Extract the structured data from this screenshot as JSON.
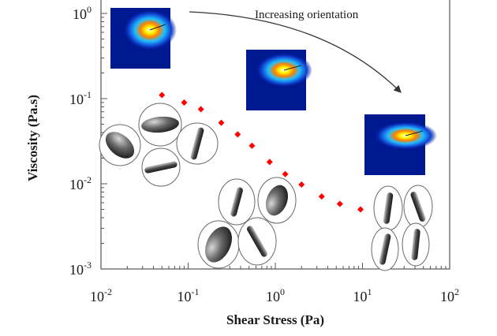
{
  "chart_data": {
    "type": "scatter",
    "title": "",
    "xlabel": "Shear Stress (Pa)",
    "ylabel": "Viscosity (Pa.s)",
    "xscale": "log",
    "yscale": "log",
    "xlim": [
      0.01,
      100
    ],
    "ylim": [
      0.001,
      1
    ],
    "x_ticks": [
      {
        "value": 0.01,
        "base": "10",
        "exp": "-2"
      },
      {
        "value": 0.1,
        "base": "10",
        "exp": "-1"
      },
      {
        "value": 1,
        "base": "10",
        "exp": "0"
      },
      {
        "value": 10,
        "base": "10",
        "exp": "1"
      },
      {
        "value": 100,
        "base": "10",
        "exp": "2"
      }
    ],
    "y_ticks": [
      {
        "value": 0.001,
        "base": "10",
        "exp": "-3"
      },
      {
        "value": 0.01,
        "base": "10",
        "exp": "-2"
      },
      {
        "value": 0.1,
        "base": "10",
        "exp": "-1"
      },
      {
        "value": 1,
        "base": "10",
        "exp": "0"
      }
    ],
    "series": [
      {
        "name": "viscosity",
        "color": "#ff0000",
        "points": [
          {
            "x": 0.05,
            "y": 0.11
          },
          {
            "x": 0.09,
            "y": 0.09
          },
          {
            "x": 0.14,
            "y": 0.075
          },
          {
            "x": 0.24,
            "y": 0.052
          },
          {
            "x": 0.37,
            "y": 0.038
          },
          {
            "x": 0.54,
            "y": 0.028
          },
          {
            "x": 0.86,
            "y": 0.018
          },
          {
            "x": 1.3,
            "y": 0.013
          },
          {
            "x": 2.0,
            "y": 0.0098
          },
          {
            "x": 3.4,
            "y": 0.0071
          },
          {
            "x": 5.5,
            "y": 0.0058
          },
          {
            "x": 9.5,
            "y": 0.005
          }
        ]
      }
    ],
    "annotations": [
      {
        "text": "Increasing orientation",
        "arrow": true
      }
    ]
  }
}
